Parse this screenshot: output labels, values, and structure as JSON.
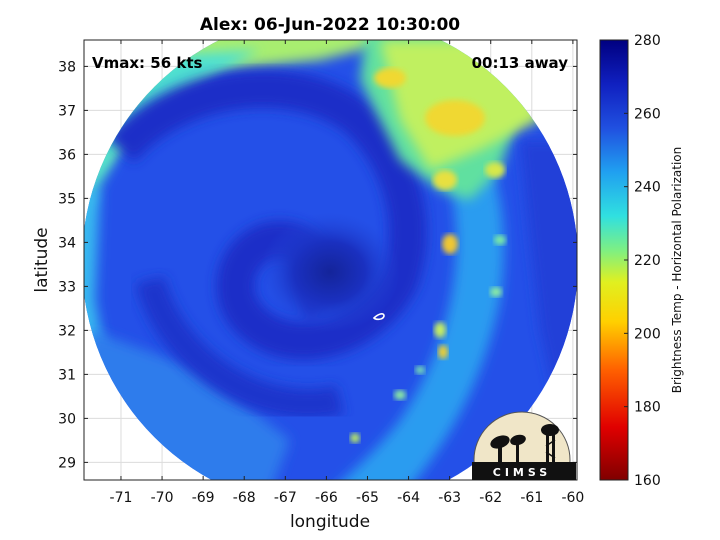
{
  "title": "Alex: 06-Jun-2022 10:30:00",
  "vmax_label": "Vmax: 56 kts",
  "time_away_label": "00:13 away",
  "map": {
    "xlabel": "longitude",
    "ylabel": "latitude",
    "x_ticks": [
      -71,
      -70,
      -69,
      -68,
      -67,
      -66,
      -65,
      -64,
      -63,
      -62,
      -61,
      -60
    ],
    "y_ticks": [
      29,
      30,
      31,
      32,
      33,
      34,
      35,
      36,
      37,
      38
    ],
    "xlim": [
      -71.9,
      -59.9
    ],
    "ylim": [
      28.6,
      38.6
    ],
    "grid": true,
    "storm_center": [
      -65.9,
      33.0
    ]
  },
  "colorbar": {
    "label": "Brightness Temp - Horizontal Polarization",
    "ticks": [
      160,
      180,
      200,
      220,
      240,
      260,
      280
    ],
    "range": [
      160,
      280
    ]
  },
  "logo": {
    "text": "CIMSS"
  },
  "colors": {
    "deep_blue": "#1a2ec8",
    "blue": "#2450e8",
    "light_blue": "#2aa0f0",
    "cyan": "#40e0e0",
    "green_yellow": "#b8f060",
    "yellow": "#f0d830"
  }
}
